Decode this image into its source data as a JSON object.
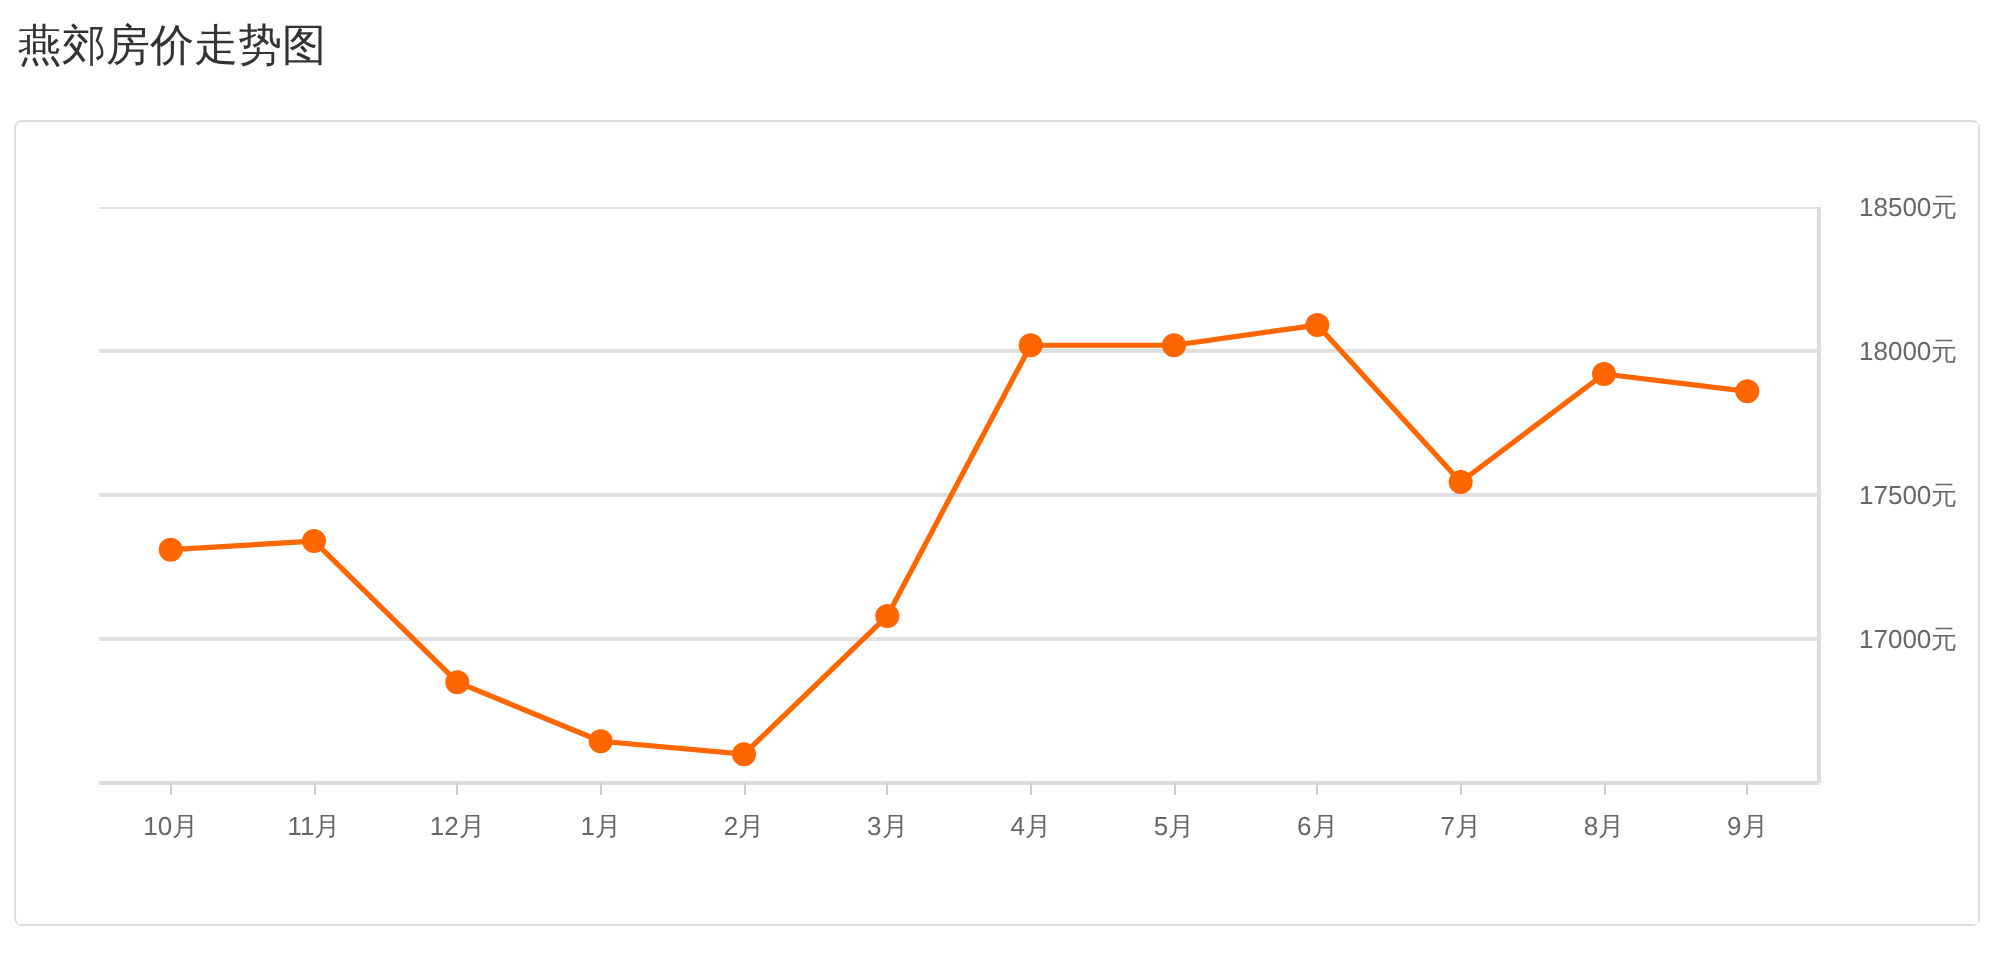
{
  "chart_data": {
    "type": "line",
    "title": "燕郊房价走势图",
    "categories": [
      "10月",
      "11月",
      "12月",
      "1月",
      "2月",
      "3月",
      "4月",
      "5月",
      "6月",
      "7月",
      "8月",
      "9月"
    ],
    "series": [
      {
        "color": "#ff6600",
        "values": [
          17310,
          17340,
          16850,
          16645,
          16600,
          17080,
          18020,
          18020,
          18090,
          17545,
          17920,
          17860
        ]
      }
    ],
    "ylim": [
      16500,
      18500
    ],
    "yticks": [
      {
        "value": 17000,
        "label": "17000元"
      },
      {
        "value": 17500,
        "label": "17500元"
      },
      {
        "value": 18000,
        "label": "18000元"
      },
      {
        "value": 18500,
        "label": "18500元"
      }
    ],
    "grid": "y",
    "marker": "circle",
    "line_style": "solid"
  }
}
